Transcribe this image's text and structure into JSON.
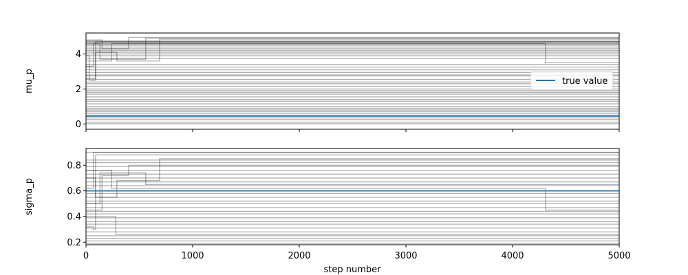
{
  "chart_data": [
    {
      "type": "line",
      "title": "",
      "xlabel": "",
      "ylabel": "mu_p",
      "xlim": [
        0,
        5000
      ],
      "ylim": [
        -0.3,
        5.2
      ],
      "yticks": [
        0,
        2,
        4
      ],
      "xticks": [
        0,
        1000,
        2000,
        3000,
        4000,
        5000
      ],
      "xtick_labels_visible": false,
      "grid": false,
      "legend": {
        "position": "center-right",
        "entries": [
          "true value"
        ]
      },
      "true_value": 0.45,
      "true_value_color": "#1f77b4",
      "trace_color": "#000000",
      "trace_opacity": 0.3,
      "walkers": [
        {
          "segments": [
            [
              0,
              3.3
            ],
            [
              70,
              4.6
            ]
          ]
        },
        {
          "segments": [
            [
              0,
              2.6
            ],
            [
              90,
              4.1
            ],
            [
              290,
              3.6
            ],
            [
              690,
              4.85
            ]
          ]
        },
        {
          "segments": [
            [
              0,
              4.6
            ],
            [
              130,
              3.7
            ],
            [
              560,
              4.9
            ]
          ]
        },
        {
          "segments": [
            [
              0,
              3.9
            ],
            [
              30,
              2.5
            ],
            [
              90,
              4.7
            ]
          ]
        },
        {
          "segments": [
            [
              0,
              4.8
            ],
            [
              150,
              4.3
            ],
            [
              400,
              4.95
            ]
          ]
        },
        {
          "segments": [
            [
              0,
              3.6
            ],
            [
              240,
              4.6
            ],
            [
              4310,
              3.5
            ]
          ]
        },
        {
          "segments": [
            [
              0,
              4.75
            ]
          ]
        },
        {
          "segments": [
            [
              0,
              4.7
            ]
          ]
        },
        {
          "segments": [
            [
              0,
              4.65
            ]
          ]
        },
        {
          "segments": [
            [
              0,
              4.55
            ]
          ]
        },
        {
          "segments": [
            [
              0,
              4.5
            ]
          ]
        },
        {
          "segments": [
            [
              0,
              4.4
            ]
          ]
        },
        {
          "segments": [
            [
              0,
              4.3
            ]
          ]
        },
        {
          "segments": [
            [
              0,
              4.2
            ]
          ]
        },
        {
          "segments": [
            [
              0,
              4.1
            ]
          ]
        },
        {
          "segments": [
            [
              0,
              4.0
            ]
          ]
        },
        {
          "segments": [
            [
              0,
              3.9
            ]
          ]
        },
        {
          "segments": [
            [
              0,
              3.75
            ]
          ]
        },
        {
          "segments": [
            [
              0,
              3.4
            ]
          ]
        },
        {
          "segments": [
            [
              0,
              3.25
            ]
          ]
        },
        {
          "segments": [
            [
              0,
              3.1
            ]
          ]
        },
        {
          "segments": [
            [
              0,
              2.95
            ]
          ]
        },
        {
          "segments": [
            [
              0,
              2.8
            ]
          ]
        },
        {
          "segments": [
            [
              0,
              2.75
            ]
          ]
        },
        {
          "segments": [
            [
              0,
              2.55
            ]
          ]
        },
        {
          "segments": [
            [
              0,
              2.4
            ]
          ]
        },
        {
          "segments": [
            [
              0,
              2.3
            ]
          ]
        },
        {
          "segments": [
            [
              0,
              2.15
            ]
          ]
        },
        {
          "segments": [
            [
              0,
              2.0
            ]
          ]
        },
        {
          "segments": [
            [
              0,
              1.9
            ]
          ]
        },
        {
          "segments": [
            [
              0,
              1.8
            ]
          ]
        },
        {
          "segments": [
            [
              0,
              1.7
            ]
          ]
        },
        {
          "segments": [
            [
              0,
              1.55
            ]
          ]
        },
        {
          "segments": [
            [
              0,
              1.4
            ]
          ]
        },
        {
          "segments": [
            [
              0,
              1.3
            ]
          ]
        },
        {
          "segments": [
            [
              0,
              1.15
            ]
          ]
        },
        {
          "segments": [
            [
              0,
              1.0
            ]
          ]
        },
        {
          "segments": [
            [
              0,
              0.9
            ]
          ]
        },
        {
          "segments": [
            [
              0,
              0.8
            ]
          ]
        },
        {
          "segments": [
            [
              0,
              0.7
            ]
          ]
        },
        {
          "segments": [
            [
              0,
              0.6
            ]
          ]
        },
        {
          "segments": [
            [
              0,
              0.5
            ]
          ]
        },
        {
          "segments": [
            [
              0,
              0.35
            ]
          ]
        },
        {
          "segments": [
            [
              0,
              0.25
            ]
          ]
        },
        {
          "segments": [
            [
              0,
              0.1
            ]
          ]
        },
        {
          "segments": [
            [
              0,
              0.02
            ]
          ]
        }
      ]
    },
    {
      "type": "line",
      "title": "",
      "xlabel": "step number",
      "ylabel": "sigma_p",
      "xlim": [
        0,
        5000
      ],
      "ylim": [
        0.18,
        0.93
      ],
      "yticks": [
        0.2,
        0.4,
        0.6,
        0.8
      ],
      "ytick_labels": [
        "0.2",
        "0.4",
        "0.6",
        "0.8"
      ],
      "xticks": [
        0,
        1000,
        2000,
        3000,
        4000,
        5000
      ],
      "xtick_labels": [
        "0",
        "1000",
        "2000",
        "3000",
        "4000",
        "5000"
      ],
      "grid": false,
      "true_value": 0.6,
      "true_value_color": "#1f77b4",
      "trace_color": "#000000",
      "trace_opacity": 0.3,
      "walkers": [
        {
          "segments": [
            [
              0,
              0.62
            ],
            [
              70,
              0.9
            ]
          ]
        },
        {
          "segments": [
            [
              0,
              0.7
            ],
            [
              90,
              0.55
            ],
            [
              290,
              0.68
            ],
            [
              690,
              0.85
            ]
          ]
        },
        {
          "segments": [
            [
              0,
              0.5
            ],
            [
              130,
              0.74
            ],
            [
              560,
              0.65
            ]
          ]
        },
        {
          "segments": [
            [
              0,
              0.32
            ],
            [
              70,
              0.3
            ],
            [
              90,
              0.88
            ]
          ]
        },
        {
          "segments": [
            [
              0,
              0.45
            ],
            [
              150,
              0.72
            ],
            [
              400,
              0.8
            ]
          ]
        },
        {
          "segments": [
            [
              0,
              0.76
            ],
            [
              240,
              0.62
            ],
            [
              4310,
              0.45
            ]
          ]
        },
        {
          "segments": [
            [
              0,
              0.4
            ],
            [
              280,
              0.26
            ]
          ]
        },
        {
          "segments": [
            [
              0,
              0.9
            ]
          ]
        },
        {
          "segments": [
            [
              0,
              0.84
            ]
          ]
        },
        {
          "segments": [
            [
              0,
              0.82
            ]
          ]
        },
        {
          "segments": [
            [
              0,
              0.79
            ]
          ]
        },
        {
          "segments": [
            [
              0,
              0.76
            ]
          ]
        },
        {
          "segments": [
            [
              0,
              0.73
            ]
          ]
        },
        {
          "segments": [
            [
              0,
              0.7
            ]
          ]
        },
        {
          "segments": [
            [
              0,
              0.67
            ]
          ]
        },
        {
          "segments": [
            [
              0,
              0.64
            ]
          ]
        },
        {
          "segments": [
            [
              0,
              0.58
            ]
          ]
        },
        {
          "segments": [
            [
              0,
              0.55
            ]
          ]
        },
        {
          "segments": [
            [
              0,
              0.52
            ]
          ]
        },
        {
          "segments": [
            [
              0,
              0.5
            ]
          ]
        },
        {
          "segments": [
            [
              0,
              0.47
            ]
          ]
        },
        {
          "segments": [
            [
              0,
              0.44
            ]
          ]
        },
        {
          "segments": [
            [
              0,
              0.42
            ]
          ]
        },
        {
          "segments": [
            [
              0,
              0.39
            ]
          ]
        },
        {
          "segments": [
            [
              0,
              0.36
            ]
          ]
        },
        {
          "segments": [
            [
              0,
              0.34
            ]
          ]
        },
        {
          "segments": [
            [
              0,
              0.31
            ]
          ]
        },
        {
          "segments": [
            [
              0,
              0.28
            ]
          ]
        },
        {
          "segments": [
            [
              0,
              0.25
            ]
          ]
        },
        {
          "segments": [
            [
              0,
              0.23
            ]
          ]
        },
        {
          "segments": [
            [
              0,
              0.21
            ]
          ]
        },
        {
          "segments": [
            [
              0,
              0.19
            ]
          ]
        }
      ]
    }
  ]
}
